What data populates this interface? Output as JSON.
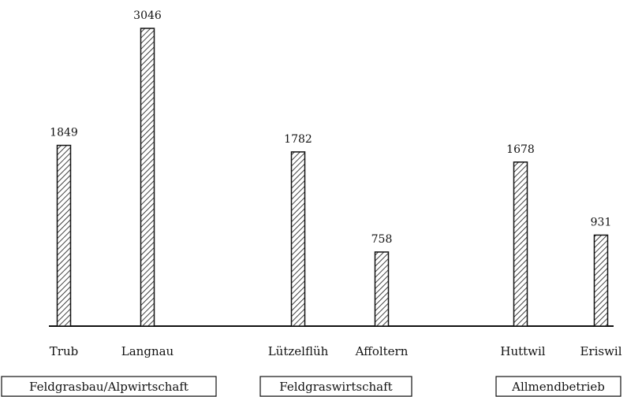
{
  "chart_data": {
    "type": "bar",
    "categories": [
      "Trub",
      "Langnau",
      "Lützelflüh",
      "Affoltern",
      "Huttwil",
      "Eriswil"
    ],
    "values": [
      1849,
      3046,
      1782,
      758,
      1678,
      931
    ],
    "value_labels": [
      "1849",
      "3046",
      "1782",
      "758",
      "1678",
      "931"
    ],
    "groups": [
      {
        "label": "Feldgrasbau/Alpwirtschaft",
        "categories": [
          "Trub",
          "Langnau"
        ]
      },
      {
        "label": "Feldgraswirtschaft",
        "categories": [
          "Lützelflüh",
          "Affoltern"
        ]
      },
      {
        "label": "Allmendbetrieb",
        "categories": [
          "Huttwil",
          "Eriswil"
        ]
      }
    ],
    "ylim": [
      0,
      3046
    ],
    "grid": false,
    "bar_fill": "diagonal-hatch",
    "colors": {
      "bar_stroke": "#111111",
      "hatch": "#111111",
      "baseline": "#111111"
    }
  }
}
